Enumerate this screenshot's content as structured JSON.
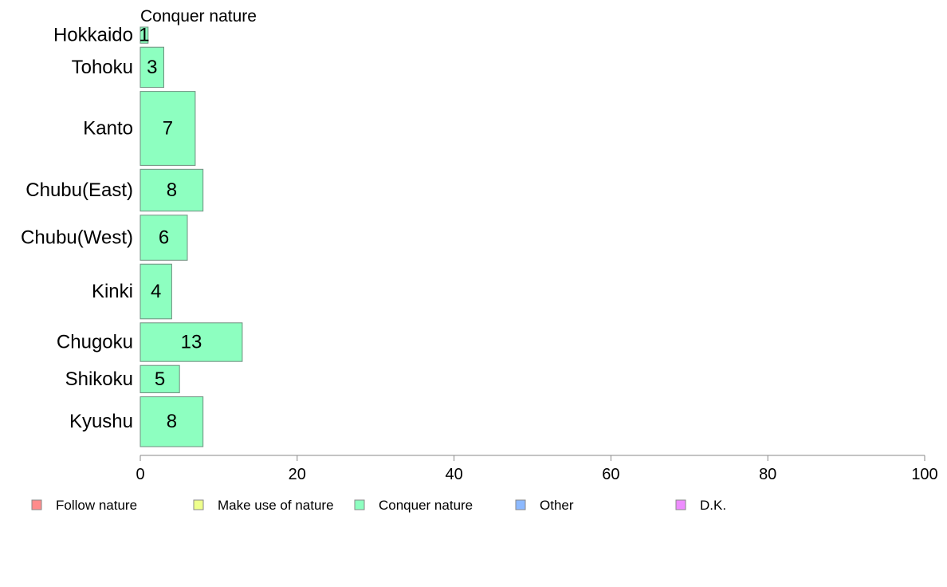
{
  "chart_data": {
    "type": "bar",
    "orientation": "horizontal",
    "title": "",
    "subtitle": "Conquer nature",
    "xlabel": "",
    "ylabel": "",
    "xlim": [
      0,
      100
    ],
    "xticks": [
      0,
      20,
      40,
      60,
      80,
      100
    ],
    "grid": false,
    "categories": [
      "Hokkaido",
      "Tohoku",
      "Kanto",
      "Chubu(East)",
      "Chubu(West)",
      "Kinki",
      "Chugoku",
      "Shikoku",
      "Kyushu"
    ],
    "category_weights": [
      1,
      2.5,
      4.6,
      2.6,
      2.8,
      3.4,
      2.4,
      1.7,
      3.1
    ],
    "series": [
      {
        "name": "Conquer nature",
        "color": "#8DFFC0",
        "values": [
          1,
          3,
          7,
          8,
          6,
          4,
          13,
          5,
          8
        ]
      }
    ],
    "bar_stroke": "#6F8F7F",
    "legend": {
      "position": "bottom",
      "entries": [
        {
          "label": "Follow nature",
          "color": "#FF8C8C"
        },
        {
          "label": "Make use of nature",
          "color": "#EEFF8C"
        },
        {
          "label": "Conquer nature",
          "color": "#8DFFC0"
        },
        {
          "label": "Other",
          "color": "#8CB9FF"
        },
        {
          "label": "D.K.",
          "color": "#EE8CFF"
        }
      ]
    }
  }
}
